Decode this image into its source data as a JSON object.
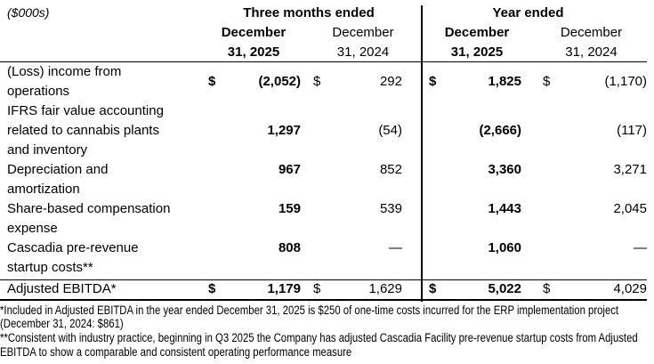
{
  "table": {
    "unit_label": "($000s)",
    "groups": [
      {
        "title": "Three months ended",
        "col_2025": "December\n31, 2025",
        "col_2024": "December\n31, 2024"
      },
      {
        "title": "Year ended",
        "col_2025": "December\n31, 2025",
        "col_2024": "December\n31, 2024"
      }
    ],
    "rows": [
      {
        "label_lines": [
          "(Loss) income from",
          "operations"
        ],
        "d1": "$",
        "v1": "(2,052)",
        "d2": "$",
        "v2": "292",
        "d3": "$",
        "v3": "1,825",
        "d4": "$",
        "v4": "(1,170)"
      },
      {
        "label_lines": [
          "IFRS fair value accounting",
          "related to cannabis plants",
          "and inventory"
        ],
        "d1": "",
        "v1": "1,297",
        "d2": "",
        "v2": "(54)",
        "d3": "",
        "v3": "(2,666)",
        "d4": "",
        "v4": "(117)"
      },
      {
        "label_lines": [
          "Depreciation and",
          "amortization"
        ],
        "d1": "",
        "v1": "967",
        "d2": "",
        "v2": "852",
        "d3": "",
        "v3": "3,360",
        "d4": "",
        "v4": "3,271"
      },
      {
        "label_lines": [
          "Share-based compensation",
          "expense"
        ],
        "d1": "",
        "v1": "159",
        "d2": "",
        "v2": "539",
        "d3": "",
        "v3": "1,443",
        "d4": "",
        "v4": "2,045"
      },
      {
        "label_lines": [
          "Cascadia pre-revenue",
          "startup costs**"
        ],
        "d1": "",
        "v1": "808",
        "d2": "",
        "v2": "—",
        "d3": "",
        "v3": "1,060",
        "d4": "",
        "v4": "—"
      }
    ],
    "total_row": {
      "label": "Adjusted EBITDA*",
      "d1": "$",
      "v1": "1,179",
      "d2": "$",
      "v2": "1,629",
      "d3": "$",
      "v3": "5,022",
      "d4": "$",
      "v4": "4,029"
    }
  },
  "footnotes": [
    "*Included in Adjusted EBITDA in the year ended December 31, 2025 is $250 of one-time costs incurred for the ERP implementation project (December 31, 2024: $861)",
    "**Consistent with industry practice, beginning in Q3 2025 the Company has adjusted Cascadia Facility pre-revenue startup costs from Adjusted EBITDA to show a comparable and consistent operating performance measure"
  ]
}
